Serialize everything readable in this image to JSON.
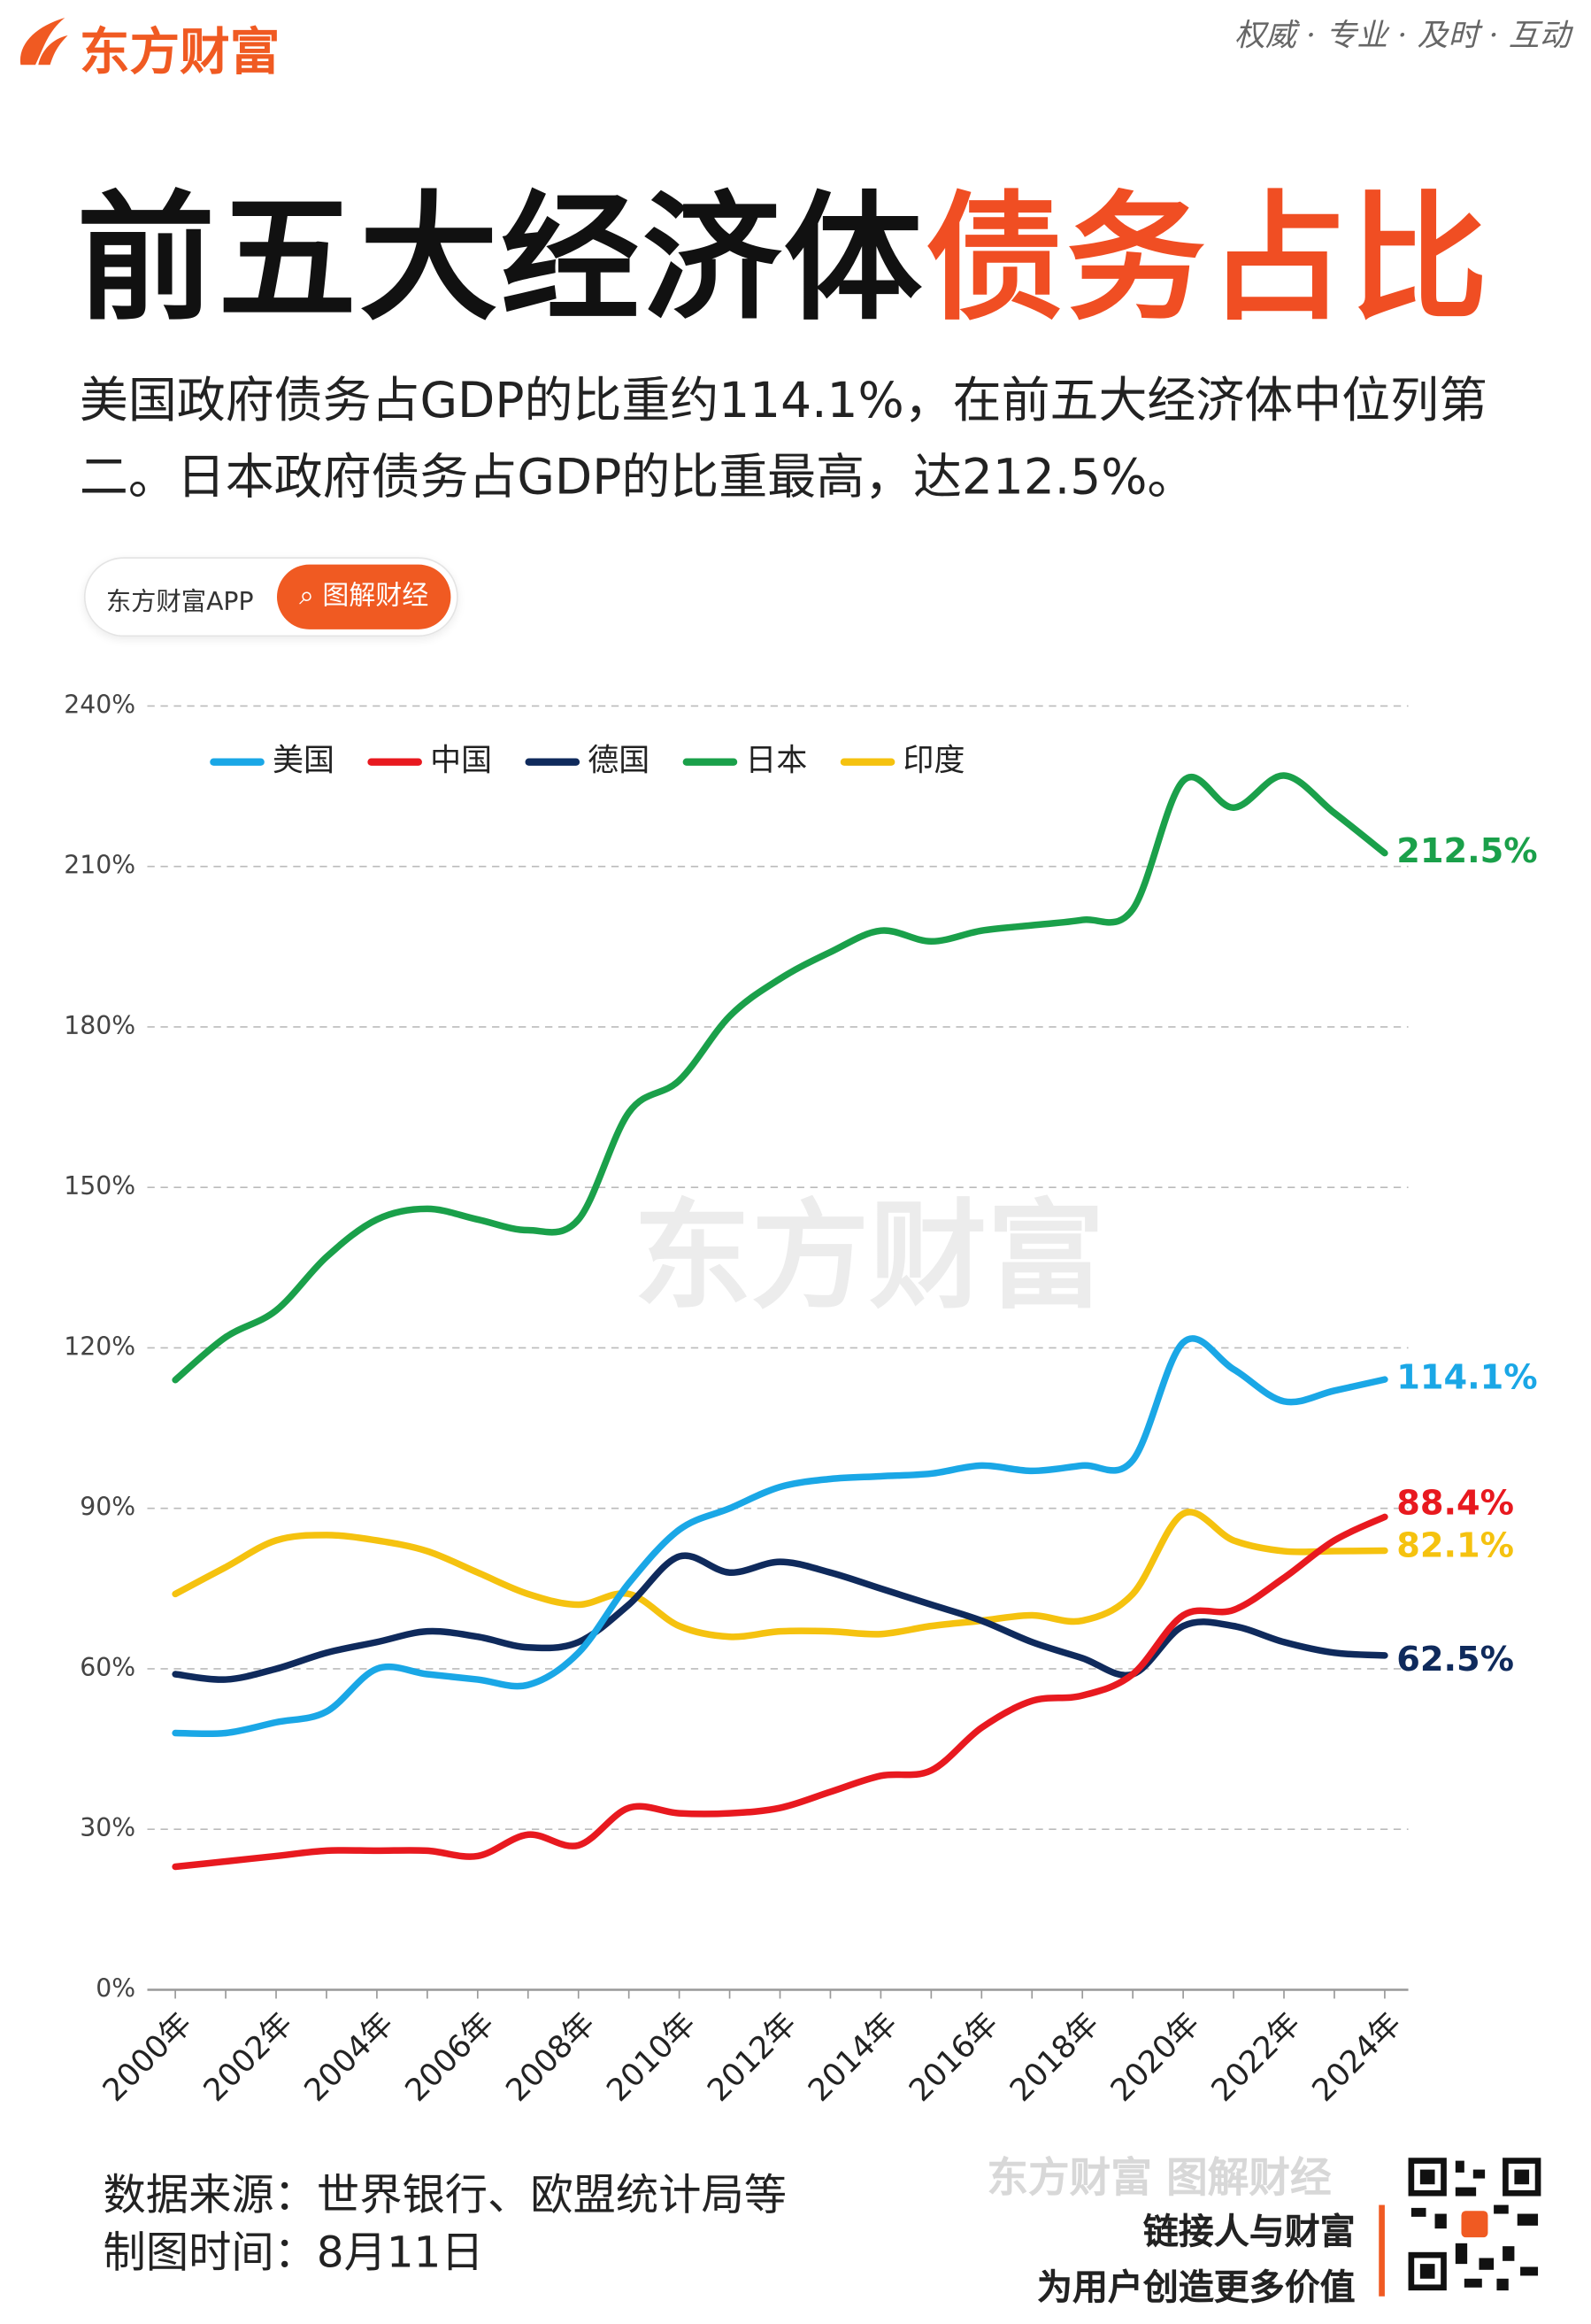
{
  "header": {
    "logo": "东方财富",
    "tagline": "权威 · 专业 · 及时 · 互动",
    "title_black": "前五大经济体",
    "title_orange": "债务占比",
    "subtitle": "美国政府债务占GDP的比重约114.1%，在前五大经济体中位列第二。日本政府债务占GDP的比重最高，达212.5%。",
    "app_label": "东方财富APP",
    "button": "图解财经"
  },
  "watermark": "东方财富",
  "footer": {
    "source": "数据来源：世界银行、欧盟统计局等",
    "date": "制图时间：8月11日",
    "brand": "东方财富 图解财经",
    "slogan1": "链接人与财富",
    "slogan2": "为用户创造更多价值"
  },
  "chart_data": {
    "type": "line",
    "categories": [
      "2000年",
      null,
      "2002年",
      null,
      "2004年",
      null,
      "2006年",
      null,
      "2008年",
      null,
      "2010年",
      null,
      "2012年",
      null,
      "2014年",
      null,
      "2016年",
      null,
      "2018年",
      null,
      "2020年",
      null,
      "2022年",
      null,
      "2024年"
    ],
    "ylim": [
      0,
      240
    ],
    "yticks": [
      {
        "value": 0,
        "label": "0%"
      },
      {
        "value": 30,
        "label": "30%"
      },
      {
        "value": 60,
        "label": "60%"
      },
      {
        "value": 90,
        "label": "90%"
      },
      {
        "value": 120,
        "label": "120%"
      },
      {
        "value": 150,
        "label": "150%"
      },
      {
        "value": 180,
        "label": "180%"
      },
      {
        "value": 210,
        "label": "210%"
      },
      {
        "value": 240,
        "label": "240%"
      }
    ],
    "grid": true,
    "series": [
      {
        "name": "美国",
        "color": "#1aa7e6",
        "values": [
          48,
          48,
          50,
          52,
          60,
          59,
          58,
          57,
          63,
          76,
          86,
          90,
          94,
          95.5,
          96,
          96.5,
          98,
          97,
          98,
          99,
          121,
          116,
          110,
          112,
          114.1
        ],
        "value_labels": [
          null,
          null,
          null,
          null,
          null,
          null,
          null,
          null,
          null,
          null,
          null,
          null,
          null,
          null,
          null,
          null,
          null,
          null,
          null,
          null,
          null,
          null,
          null,
          null,
          "114.1%"
        ]
      },
      {
        "name": "中国",
        "color": "#e8191f",
        "values": [
          23,
          24,
          25,
          26,
          26,
          26,
          25,
          29,
          27,
          34,
          33,
          33,
          34,
          37,
          40,
          41,
          49,
          54,
          55,
          59,
          70,
          71,
          77,
          84,
          88.4
        ],
        "value_labels": [
          null,
          null,
          null,
          null,
          null,
          null,
          null,
          null,
          null,
          null,
          null,
          null,
          null,
          null,
          null,
          null,
          null,
          null,
          null,
          null,
          null,
          null,
          null,
          null,
          "88.4%"
        ]
      },
      {
        "name": "德国",
        "color": "#0f2a5c",
        "values": [
          59,
          58,
          60,
          63,
          65,
          67,
          66,
          64,
          65,
          72,
          81,
          78,
          80,
          78,
          75,
          72,
          69,
          65,
          62,
          59,
          68,
          68,
          65,
          63,
          62.5
        ],
        "value_labels": [
          null,
          null,
          null,
          null,
          null,
          null,
          null,
          null,
          null,
          null,
          null,
          null,
          null,
          null,
          null,
          null,
          null,
          null,
          null,
          null,
          null,
          null,
          null,
          null,
          "62.5%"
        ]
      },
      {
        "name": "日本",
        "color": "#1aa04a",
        "values": [
          114,
          122,
          127,
          137,
          144,
          146,
          144,
          142,
          144,
          164,
          170,
          182,
          189,
          194,
          198,
          196,
          198,
          199,
          200,
          202,
          226,
          221,
          227,
          220,
          212.5
        ],
        "value_labels": [
          null,
          null,
          null,
          null,
          null,
          null,
          null,
          null,
          null,
          null,
          null,
          null,
          null,
          null,
          null,
          null,
          null,
          null,
          null,
          null,
          null,
          null,
          null,
          null,
          "212.5%"
        ]
      },
      {
        "name": "印度",
        "color": "#f5c20f",
        "values": [
          74,
          79,
          84,
          85,
          84,
          82,
          78,
          74,
          72,
          74,
          68,
          66,
          67,
          67,
          66.5,
          68,
          69,
          70,
          69,
          74,
          89,
          84,
          82,
          82,
          82.1
        ],
        "value_labels": [
          null,
          null,
          null,
          null,
          null,
          null,
          null,
          null,
          null,
          null,
          null,
          null,
          null,
          null,
          null,
          null,
          null,
          null,
          null,
          null,
          null,
          null,
          null,
          null,
          "82.1%"
        ]
      }
    ]
  }
}
